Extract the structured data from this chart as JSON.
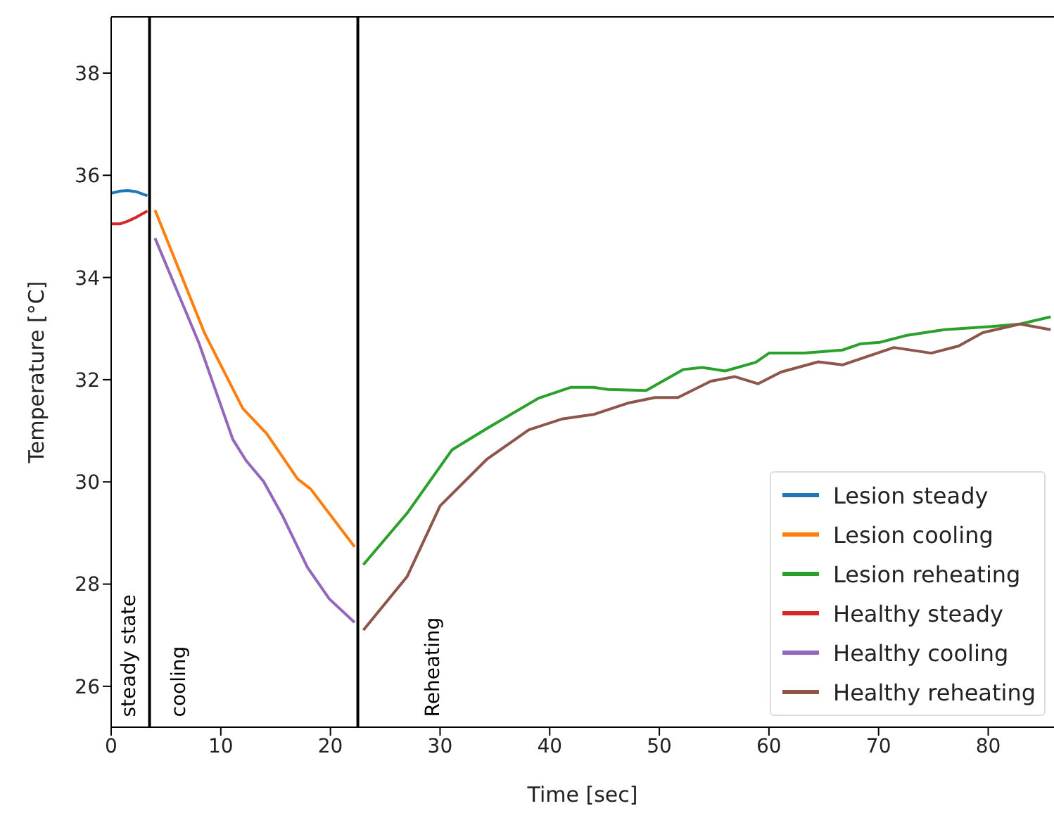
{
  "chart_data": {
    "type": "line",
    "xlabel": "Time [sec]",
    "ylabel": "Temperature [°C]",
    "xlim": [
      0,
      86
    ],
    "ylim": [
      25.2,
      39.1
    ],
    "xticks": [
      0,
      10,
      20,
      30,
      40,
      50,
      60,
      70,
      80
    ],
    "yticks": [
      26,
      28,
      30,
      32,
      34,
      36,
      38
    ],
    "grid": false,
    "legend": "bottom right",
    "marker": "none",
    "line_style": "solid",
    "series": [
      {
        "name": "Lesion steady",
        "color": "#1f77b4",
        "x": [
          0,
          0.8,
          1.5,
          2.3,
          3.3
        ],
        "values": [
          35.65,
          35.69,
          35.7,
          35.68,
          35.6
        ]
      },
      {
        "name": "Lesion cooling",
        "color": "#ff7f0e",
        "x": [
          4.0,
          8.5,
          12.0,
          14.2,
          17.0,
          18.2,
          22.2
        ],
        "values": [
          35.32,
          32.92,
          31.44,
          30.94,
          30.06,
          29.86,
          28.73
        ]
      },
      {
        "name": "Lesion reheating",
        "color": "#2ca02c",
        "x": [
          23.0,
          27.0,
          31.1,
          34.3,
          39.0,
          41.9,
          44.0,
          45.3,
          48.8,
          52.2,
          53.9,
          56.0,
          58.8,
          60.0,
          63.2,
          66.7,
          68.3,
          70.1,
          72.6,
          76.0,
          80.3,
          82.9,
          85.7
        ],
        "values": [
          28.38,
          29.39,
          30.63,
          31.05,
          31.64,
          31.85,
          31.85,
          31.81,
          31.79,
          32.2,
          32.24,
          32.17,
          32.34,
          32.52,
          32.52,
          32.58,
          32.7,
          32.73,
          32.87,
          32.98,
          33.04,
          33.09,
          33.23
        ]
      },
      {
        "name": "Healthy steady",
        "color": "#d62728",
        "x": [
          0,
          0.8,
          1.5,
          2.3,
          3.3
        ],
        "values": [
          35.05,
          35.05,
          35.1,
          35.18,
          35.3
        ]
      },
      {
        "name": "Healthy cooling",
        "color": "#9467bd",
        "x": [
          4.0,
          8.0,
          11.1,
          12.3,
          13.9,
          15.6,
          17.9,
          19.9,
          22.2
        ],
        "values": [
          34.77,
          32.72,
          30.83,
          30.42,
          30.01,
          29.35,
          28.33,
          27.71,
          27.25
        ]
      },
      {
        "name": "Healthy reheating",
        "color": "#8c564b",
        "x": [
          23.0,
          27.0,
          30.0,
          34.3,
          38.1,
          41.1,
          44.0,
          47.1,
          49.6,
          51.7,
          54.7,
          56.9,
          59.0,
          61.1,
          64.5,
          66.7,
          71.4,
          74.8,
          77.3,
          79.5,
          82.9,
          85.7
        ],
        "values": [
          27.1,
          28.15,
          29.53,
          30.45,
          31.02,
          31.23,
          31.32,
          31.54,
          31.65,
          31.65,
          31.97,
          32.06,
          31.92,
          32.15,
          32.35,
          32.29,
          32.63,
          32.52,
          32.66,
          32.92,
          33.09,
          32.98
        ]
      }
    ],
    "ref_lines": [
      {
        "axis": "x",
        "value": 3.5,
        "color": "#000000"
      },
      {
        "axis": "x",
        "value": 22.5,
        "color": "#000000"
      }
    ],
    "annotations": [
      "steady state",
      "cooling",
      "Reheating"
    ]
  }
}
